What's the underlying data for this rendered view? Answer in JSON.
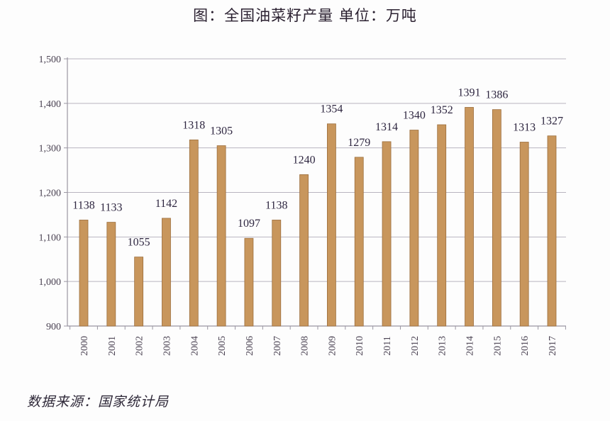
{
  "title": "图：全国油菜籽产量 单位：万吨",
  "source": "数据来源：国家统计局",
  "chart_data": {
    "type": "bar",
    "title": "图：全国油菜籽产量 单位：万吨",
    "xlabel": "",
    "ylabel": "",
    "unit": "万吨",
    "categories": [
      "2000",
      "2001",
      "2002",
      "2003",
      "2004",
      "2005",
      "2006",
      "2007",
      "2008",
      "2009",
      "2010",
      "2011",
      "2012",
      "2013",
      "2014",
      "2015",
      "2016",
      "2017"
    ],
    "values": [
      1138,
      1133,
      1055,
      1142,
      1318,
      1305,
      1097,
      1138,
      1240,
      1354,
      1279,
      1314,
      1340,
      1352,
      1391,
      1386,
      1313,
      1327
    ],
    "ylim": [
      900,
      1500
    ],
    "yticks": [
      900,
      1000,
      1100,
      1200,
      1300,
      1400,
      1500
    ],
    "ytick_labels": [
      "900",
      "1,000",
      "1,100",
      "1,200",
      "1,300",
      "1,400",
      "1,500"
    ],
    "grid": true,
    "legend": "none",
    "bar_color": "#c8965c",
    "bar_edge_color": "#9c6e3c",
    "source": "数据来源：国家统计局"
  }
}
